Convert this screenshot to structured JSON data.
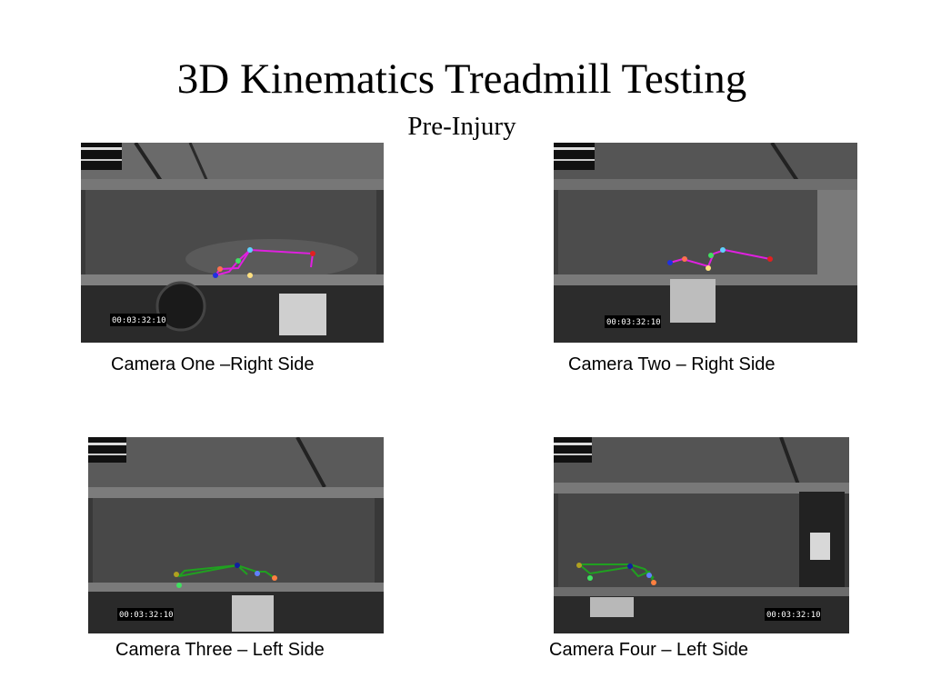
{
  "slide": {
    "title": "3D Kinematics Treadmill Testing",
    "subtitle": "Pre-Injury"
  },
  "views": [
    {
      "caption": "Camera One –Right Side",
      "timestamp": "00:03:32:10"
    },
    {
      "caption": "Camera Two – Right Side",
      "timestamp": "00:03:32:10"
    },
    {
      "caption": "Camera Three – Left Side",
      "timestamp": "00:03:32:10"
    },
    {
      "caption": "Camera Four – Left Side",
      "timestamp": "00:03:32:10"
    }
  ],
  "colors": {
    "right_side_skeleton": "#e020e0",
    "left_side_skeleton": "#20a020"
  }
}
